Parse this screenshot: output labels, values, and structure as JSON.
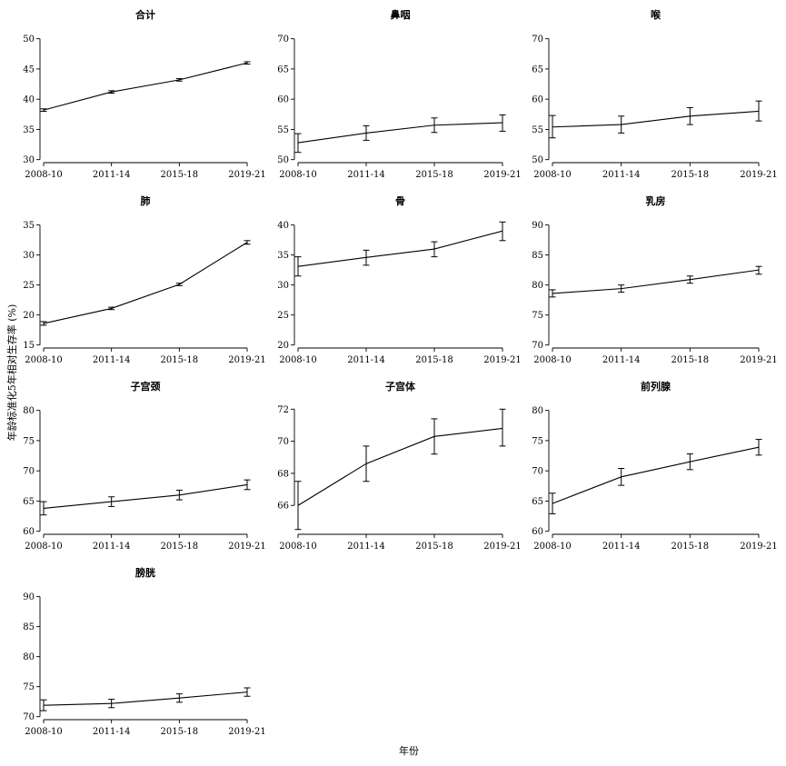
{
  "figure": {
    "ylabel": "年龄标准化5年相对生存率 (%)",
    "xlabel": "年份"
  },
  "chart_data": [
    {
      "type": "line",
      "title": "合计",
      "categories": [
        "2008-10",
        "2011-14",
        "2015-18",
        "2019-21"
      ],
      "values": [
        38.2,
        41.2,
        43.2,
        46.0
      ],
      "lower": [
        38.0,
        41.0,
        43.0,
        45.8
      ],
      "upper": [
        38.4,
        41.4,
        43.4,
        46.2
      ],
      "yticks": [
        30,
        35,
        40,
        45,
        50
      ],
      "ylim": [
        29.5,
        51
      ]
    },
    {
      "type": "line",
      "title": "鼻咽",
      "categories": [
        "2008-10",
        "2011-14",
        "2015-18",
        "2019-21"
      ],
      "values": [
        52.8,
        54.4,
        55.7,
        56.1
      ],
      "lower": [
        51.2,
        53.2,
        54.5,
        54.7
      ],
      "upper": [
        54.3,
        55.6,
        56.9,
        57.4
      ],
      "yticks": [
        50,
        55,
        60,
        65,
        70
      ],
      "ylim": [
        49.5,
        71
      ]
    },
    {
      "type": "line",
      "title": "喉",
      "categories": [
        "2008-10",
        "2011-14",
        "2015-18",
        "2019-21"
      ],
      "values": [
        55.4,
        55.8,
        57.2,
        58.0
      ],
      "lower": [
        53.6,
        54.4,
        55.8,
        56.4
      ],
      "upper": [
        57.3,
        57.2,
        58.6,
        59.7
      ],
      "yticks": [
        50,
        55,
        60,
        65,
        70
      ],
      "ylim": [
        49.5,
        71
      ]
    },
    {
      "type": "line",
      "title": "肺",
      "categories": [
        "2008-10",
        "2011-14",
        "2015-18",
        "2019-21"
      ],
      "values": [
        18.6,
        21.1,
        25.1,
        32.1
      ],
      "lower": [
        18.3,
        20.9,
        24.9,
        31.8
      ],
      "upper": [
        18.9,
        21.3,
        25.3,
        32.4
      ],
      "yticks": [
        15,
        20,
        25,
        30,
        35
      ],
      "ylim": [
        14.5,
        36
      ]
    },
    {
      "type": "line",
      "title": "骨",
      "categories": [
        "2008-10",
        "2011-14",
        "2015-18",
        "2019-21"
      ],
      "values": [
        33.1,
        34.6,
        36.0,
        39.0
      ],
      "lower": [
        31.5,
        33.3,
        34.7,
        37.4
      ],
      "upper": [
        34.7,
        35.8,
        37.2,
        40.5
      ],
      "yticks": [
        20,
        25,
        30,
        35,
        40
      ],
      "ylim": [
        19.5,
        41
      ]
    },
    {
      "type": "line",
      "title": "乳房",
      "categories": [
        "2008-10",
        "2011-14",
        "2015-18",
        "2019-21"
      ],
      "values": [
        78.6,
        79.4,
        80.9,
        82.5
      ],
      "lower": [
        78.0,
        78.8,
        80.3,
        81.8
      ],
      "upper": [
        79.2,
        80.0,
        81.5,
        83.1
      ],
      "yticks": [
        70,
        75,
        80,
        85,
        90
      ],
      "ylim": [
        69.5,
        91
      ]
    },
    {
      "type": "line",
      "title": "子宫颈",
      "categories": [
        "2008-10",
        "2011-14",
        "2015-18",
        "2019-21"
      ],
      "values": [
        63.8,
        64.9,
        66.0,
        67.7
      ],
      "lower": [
        62.7,
        64.1,
        65.2,
        66.9
      ],
      "upper": [
        64.9,
        65.7,
        66.8,
        68.5
      ],
      "yticks": [
        60,
        65,
        70,
        75,
        80
      ],
      "ylim": [
        59.5,
        81
      ]
    },
    {
      "type": "line",
      "title": "子宫体",
      "categories": [
        "2008-10",
        "2011-14",
        "2015-18",
        "2019-21"
      ],
      "values": [
        66.0,
        68.6,
        70.3,
        70.8
      ],
      "lower": [
        64.5,
        67.5,
        69.2,
        69.7
      ],
      "upper": [
        67.5,
        69.7,
        71.4,
        72.0
      ],
      "yticks": [
        66,
        68,
        70,
        72
      ],
      "ylim": [
        64.2,
        72.3
      ]
    },
    {
      "type": "line",
      "title": "前列腺",
      "categories": [
        "2008-10",
        "2011-14",
        "2015-18",
        "2019-21"
      ],
      "values": [
        64.6,
        69.0,
        71.5,
        73.9
      ],
      "lower": [
        62.9,
        67.6,
        70.2,
        72.6
      ],
      "upper": [
        66.3,
        70.4,
        72.8,
        75.2
      ],
      "yticks": [
        60,
        65,
        70,
        75,
        80
      ],
      "ylim": [
        59.5,
        81
      ]
    },
    {
      "type": "line",
      "title": "膀胱",
      "categories": [
        "2008-10",
        "2011-14",
        "2015-18",
        "2019-21"
      ],
      "values": [
        71.9,
        72.2,
        73.1,
        74.1
      ],
      "lower": [
        71.0,
        71.5,
        72.4,
        73.4
      ],
      "upper": [
        72.8,
        72.9,
        73.8,
        74.8
      ],
      "yticks": [
        70,
        75,
        80,
        85,
        90
      ],
      "ylim": [
        69.5,
        91
      ]
    }
  ]
}
